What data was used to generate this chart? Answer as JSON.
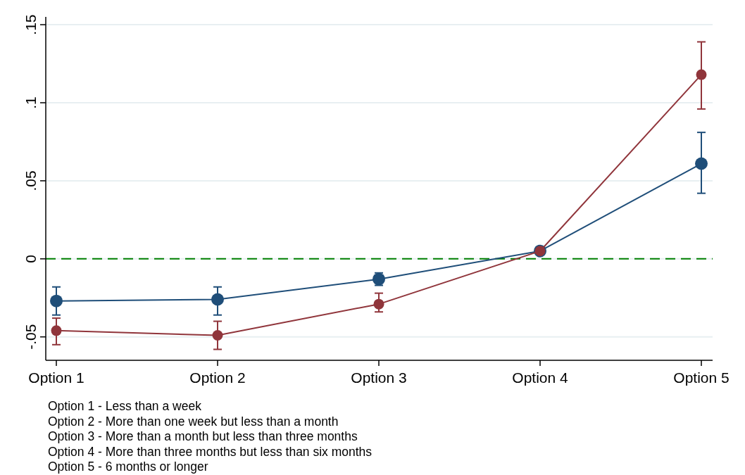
{
  "chart_data": {
    "type": "line",
    "categories": [
      "Option 1",
      "Option 2",
      "Option 3",
      "Option 4",
      "Option 5"
    ],
    "series": [
      {
        "color": "#1f4e79",
        "values": [
          -0.027,
          -0.026,
          -0.013,
          0.005,
          0.061
        ],
        "errors": [
          [
            -0.036,
            -0.018
          ],
          [
            -0.036,
            -0.018
          ],
          [
            -0.017,
            -0.009
          ],
          null,
          [
            0.042,
            0.081
          ]
        ]
      },
      {
        "color": "#90353b",
        "values": [
          -0.046,
          -0.049,
          -0.029,
          0.005,
          0.118
        ],
        "errors": [
          [
            -0.055,
            -0.038
          ],
          [
            -0.058,
            -0.04
          ],
          [
            -0.034,
            -0.022
          ],
          null,
          [
            0.096,
            0.139
          ]
        ]
      }
    ],
    "ylim": [
      -0.065,
      0.155
    ],
    "yticks": [
      {
        "value": -0.05,
        "label": "-.05"
      },
      {
        "value": 0,
        "label": "0"
      },
      {
        "value": 0.05,
        "label": ".05"
      },
      {
        "value": 0.1,
        "label": ".1"
      },
      {
        "value": 0.15,
        "label": ".15"
      }
    ],
    "grid": "y",
    "marker": "circle",
    "line_style": "solid",
    "ref_lines": [
      {
        "axis": "y",
        "value": 0,
        "color": "#008000",
        "line_style": "dashed"
      }
    ],
    "annotations": [
      "Option 1 - Less than a week",
      "Option 2 - More than one week but less than a month",
      "Option 3 - More than a month but less than three months",
      "Option 4 - More than three months but less than six months",
      "Option 5 - 6 months or longer"
    ]
  }
}
